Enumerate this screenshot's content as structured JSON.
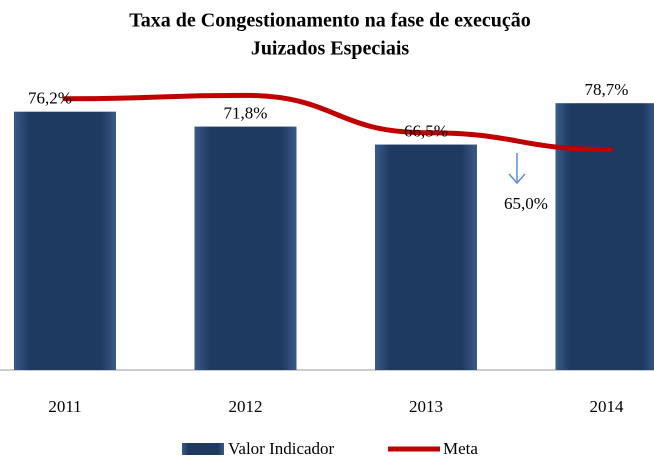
{
  "chart_data": {
    "type": "bar",
    "title": "Taxa de Congestionamento na fase de execução",
    "subtitle": "Juizados Especiais",
    "categories": [
      "2011",
      "2012",
      "2013",
      "2014"
    ],
    "series": [
      {
        "name": "Valor Indicador",
        "color": "#1f3a60",
        "values": [
          76.2,
          71.8,
          66.5,
          78.7
        ],
        "value_labels": [
          "76,2%",
          "71,8%",
          "66,5%",
          "78,7%"
        ]
      },
      {
        "name": "Meta",
        "color": "#c00000",
        "type": "line",
        "values": [
          80,
          81,
          70,
          65
        ]
      }
    ],
    "annotation": "65,0%",
    "ylim": [
      0,
      100
    ]
  }
}
